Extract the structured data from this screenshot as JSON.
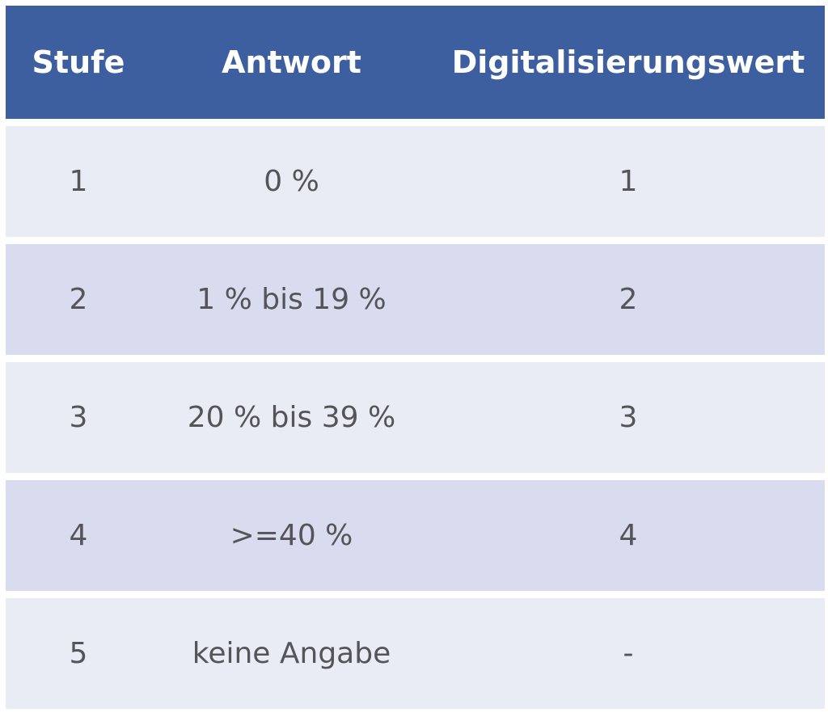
{
  "table": {
    "headers": [
      "Stufe",
      "Antwort",
      "Digitalisierungswert"
    ],
    "rows": [
      [
        "1",
        "0 %",
        "1"
      ],
      [
        "2",
        "1 % bis 19 %",
        "2"
      ],
      [
        "3",
        "20 % bis 39 %",
        "3"
      ],
      [
        "4",
        ">=40 %",
        "4"
      ],
      [
        "5",
        "keine Angabe",
        "-"
      ]
    ]
  },
  "colors": {
    "header_bg": "#3d5f9f",
    "header_text": "#ffffff",
    "row_light": "#e9ecf5",
    "row_dark": "#d8dcee",
    "body_text": "#555559"
  }
}
